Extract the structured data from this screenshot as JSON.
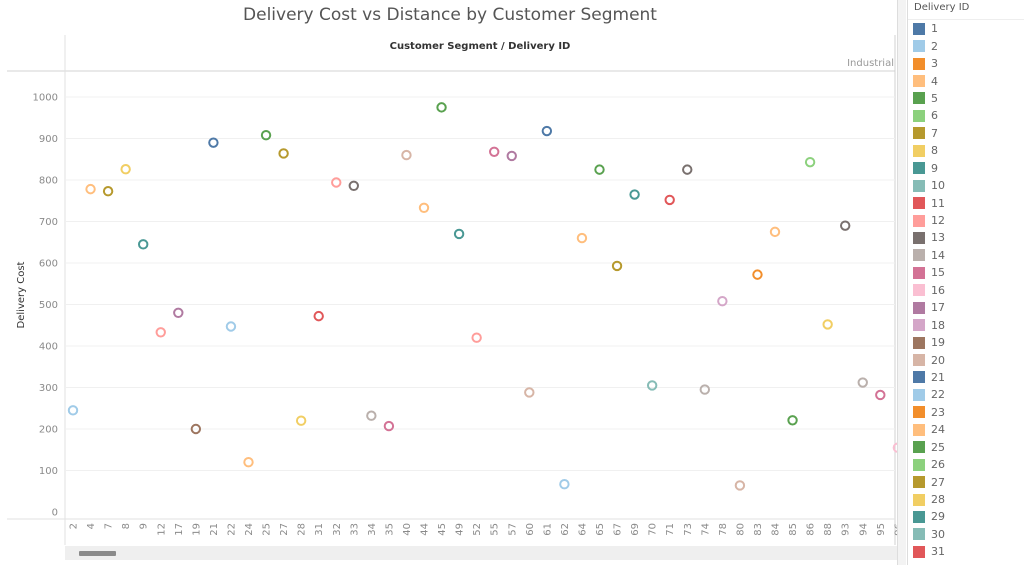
{
  "chart_data": {
    "type": "scatter",
    "title": "Delivery Cost vs Distance by Customer Segment",
    "column_header": "Customer Segment  /  Delivery ID",
    "segment": "Industrial",
    "xlabel": "",
    "ylabel": "Delivery Cost",
    "ylim": [
      0,
      1000
    ],
    "y_ticks": [
      0,
      100,
      200,
      300,
      400,
      500,
      600,
      700,
      800,
      900,
      1000
    ],
    "grid": true,
    "legend_title": "Delivery ID",
    "legend_placement": "right",
    "categories": [
      "2",
      "4",
      "7",
      "8",
      "9",
      "12",
      "17",
      "19",
      "21",
      "22",
      "24",
      "25",
      "27",
      "28",
      "31",
      "32",
      "33",
      "34",
      "35",
      "40",
      "44",
      "45",
      "49",
      "52",
      "55",
      "57",
      "60",
      "61",
      "62",
      "64",
      "65",
      "67",
      "69",
      "70",
      "71",
      "73",
      "74",
      "78",
      "80",
      "83",
      "84",
      "85",
      "86",
      "88",
      "93",
      "94",
      "95",
      "96"
    ],
    "values": [
      245,
      778,
      773,
      826,
      645,
      433,
      480,
      200,
      890,
      447,
      120,
      908,
      864,
      220,
      472,
      794,
      786,
      232,
      207,
      860,
      733,
      975,
      670,
      420,
      868,
      858,
      288,
      918,
      67,
      660,
      825,
      593,
      765,
      305,
      752,
      825,
      295,
      508,
      64,
      572,
      675,
      221,
      843,
      452,
      690,
      312,
      282,
      155
    ],
    "last_category_partially_visible": true
  },
  "legend": {
    "items": [
      "1",
      "2",
      "3",
      "4",
      "5",
      "6",
      "7",
      "8",
      "9",
      "10",
      "11",
      "12",
      "13",
      "14",
      "15",
      "16",
      "17",
      "18",
      "19",
      "20",
      "21",
      "22",
      "23",
      "24",
      "25",
      "26",
      "27",
      "28",
      "29",
      "30",
      "31"
    ]
  },
  "palette": [
    "#4e79a7",
    "#a0cbe8",
    "#f28e2b",
    "#ffbe7d",
    "#59a14f",
    "#8cd17d",
    "#b6992d",
    "#f1ce63",
    "#499894",
    "#86bcb6",
    "#e15759",
    "#ff9d9a",
    "#79706e",
    "#bab0ac",
    "#d37295",
    "#fabfd2",
    "#b07aa1",
    "#d4a6c8",
    "#9d7660",
    "#d7b5a6"
  ]
}
